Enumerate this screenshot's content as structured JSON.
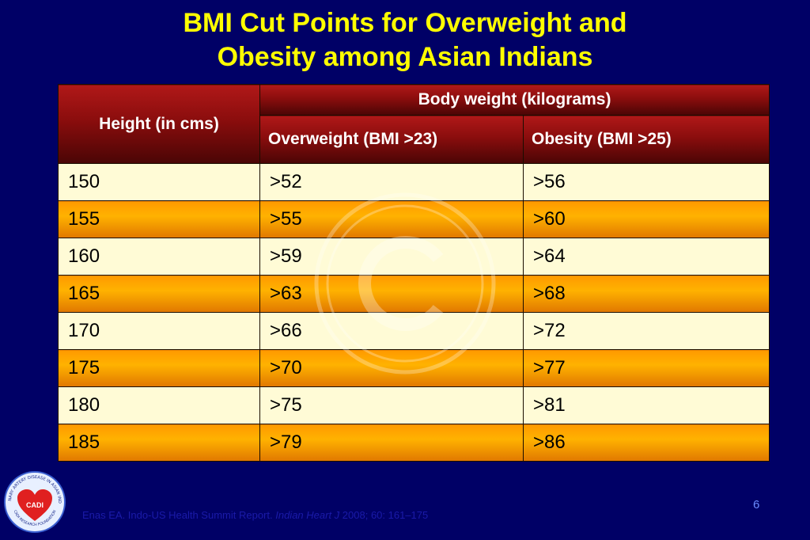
{
  "slide": {
    "title_line1": "BMI Cut Points for Overweight and",
    "title_line2": "Obesity among Asian Indians",
    "page_number": "6",
    "colors": {
      "background": "#000066",
      "title": "#ffff00",
      "header": "#8a0d0d",
      "row_light": "#fffbd6",
      "row_orange": "#ffa500"
    }
  },
  "table": {
    "height_header": "Height (in cms)",
    "group_header": "Body weight (kilograms)",
    "overweight_header": "Overweight (BMI >23)",
    "obesity_header": "Obesity (BMI >25)",
    "rows": [
      {
        "height": "150",
        "overweight": ">52",
        "obesity": ">56"
      },
      {
        "height": "155",
        "overweight": ">55",
        "obesity": ">60"
      },
      {
        "height": "160",
        "overweight": ">59",
        "obesity": ">64"
      },
      {
        "height": "165",
        "overweight": ">63",
        "obesity": ">68"
      },
      {
        "height": "170",
        "overweight": ">66",
        "obesity": ">72"
      },
      {
        "height": "175",
        "overweight": ">70",
        "obesity": ">77"
      },
      {
        "height": "180",
        "overweight": ">75",
        "obesity": ">81"
      },
      {
        "height": "185",
        "overweight": ">79",
        "obesity": ">86"
      }
    ]
  },
  "citation": {
    "authors": "Enas EA. Indo-US Health Summit Report.",
    "journal": "Indian Heart J",
    "details": "2008; 60: 161–175"
  },
  "logo": {
    "arc_text": "CORONARY ARTERY DISEASE IN ASIAN INDIANS",
    "label": "CADI",
    "foundation": "CADI RESEARCH FOUNDATION"
  },
  "watermark": {
    "icon": "copyright-icon",
    "glyph": "C"
  }
}
